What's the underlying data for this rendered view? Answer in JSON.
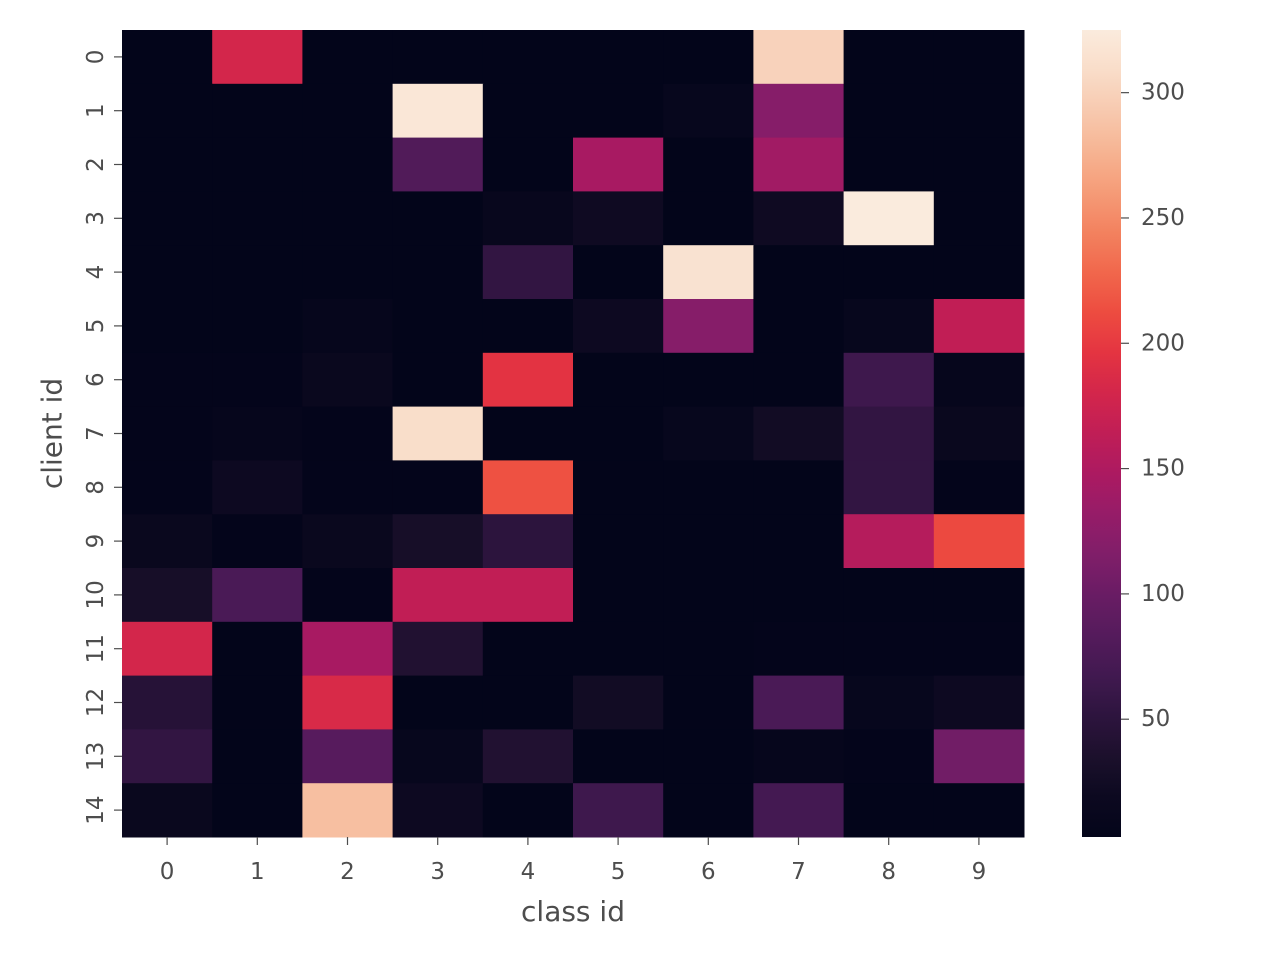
{
  "chart_data": {
    "type": "heatmap",
    "title": "",
    "xlabel": "class id",
    "ylabel": "client id",
    "x_categories": [
      "0",
      "1",
      "2",
      "3",
      "4",
      "5",
      "6",
      "7",
      "8",
      "9"
    ],
    "y_categories": [
      "0",
      "1",
      "2",
      "3",
      "4",
      "5",
      "6",
      "7",
      "8",
      "9",
      "10",
      "11",
      "12",
      "13",
      "14"
    ],
    "values": [
      [
        3,
        180,
        3,
        3,
        3,
        3,
        3,
        300,
        3,
        3
      ],
      [
        3,
        3,
        3,
        320,
        3,
        3,
        10,
        120,
        3,
        3
      ],
      [
        3,
        3,
        3,
        80,
        3,
        145,
        3,
        140,
        3,
        3
      ],
      [
        3,
        3,
        3,
        3,
        12,
        22,
        3,
        22,
        325,
        3
      ],
      [
        3,
        3,
        3,
        3,
        55,
        3,
        315,
        3,
        3,
        3
      ],
      [
        3,
        3,
        8,
        3,
        3,
        20,
        120,
        3,
        10,
        165
      ],
      [
        5,
        5,
        15,
        3,
        195,
        3,
        3,
        3,
        65,
        8
      ],
      [
        5,
        8,
        5,
        310,
        3,
        3,
        10,
        25,
        55,
        15
      ],
      [
        5,
        20,
        5,
        5,
        215,
        3,
        3,
        3,
        55,
        5
      ],
      [
        15,
        5,
        15,
        30,
        50,
        3,
        3,
        3,
        155,
        210
      ],
      [
        30,
        75,
        5,
        165,
        165,
        3,
        3,
        3,
        3,
        3
      ],
      [
        180,
        3,
        145,
        40,
        3,
        3,
        3,
        5,
        5,
        5
      ],
      [
        45,
        3,
        185,
        3,
        3,
        25,
        3,
        75,
        10,
        20
      ],
      [
        55,
        3,
        85,
        10,
        40,
        3,
        3,
        8,
        5,
        105
      ],
      [
        15,
        3,
        285,
        20,
        3,
        65,
        3,
        70,
        3,
        3
      ]
    ],
    "colorbar": {
      "range": [
        3,
        325
      ],
      "ticks": [
        50,
        100,
        150,
        200,
        250,
        300
      ],
      "colormap": "rocket"
    },
    "grid": false,
    "legend": "colorbar-right"
  }
}
